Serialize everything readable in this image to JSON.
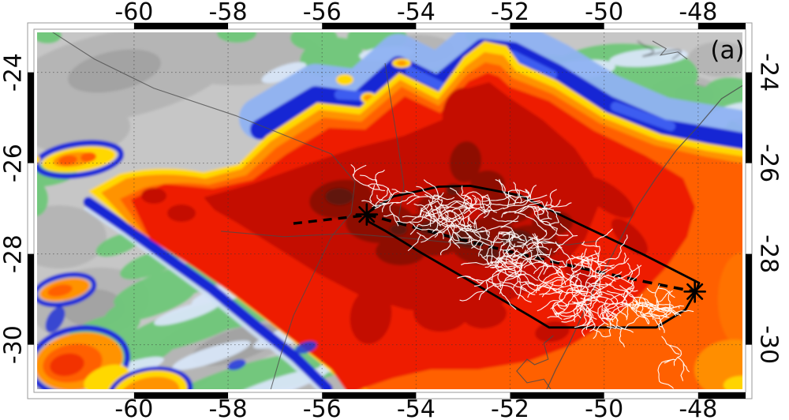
{
  "annotations": {
    "panel_label": "(a)"
  },
  "chart_data": {
    "type": "map",
    "subtype": "satellite-ir-brightness-temperature-with-lightning-overlay",
    "projection": {
      "lon_range": [
        -62.13,
        -46.99
      ],
      "lat_range": [
        -23.05,
        -31.05
      ]
    },
    "x_ticks": {
      "values": [
        -60,
        -58,
        -56,
        -54,
        -52,
        -50,
        -48
      ],
      "labels": [
        "-60",
        "-58",
        "-56",
        "-54",
        "-52",
        "-50",
        "-48"
      ],
      "sides": [
        "top",
        "bottom"
      ]
    },
    "y_ticks": {
      "values": [
        -24,
        -26,
        -28,
        -30
      ],
      "labels": [
        "-24",
        "-26",
        "-28",
        "-30"
      ],
      "sides": [
        "left",
        "right"
      ]
    },
    "graticule": {
      "step_deg": 2,
      "style": "dotted"
    },
    "frame": {
      "style": "alternating black-white degree bars",
      "bar_segments_lon": [
        [
          -60,
          -58
        ],
        [
          -56,
          -54
        ],
        [
          -52,
          -50
        ],
        [
          -48,
          -46.99
        ]
      ],
      "bar_segments_lat": [
        [
          -24,
          -26
        ],
        [
          -28,
          -30
        ]
      ]
    },
    "track": {
      "style": "dashed",
      "marker": "asterisk",
      "start": {
        "lon": -55.05,
        "lat": -27.13
      },
      "end": {
        "lon": -48.07,
        "lat": -28.83
      },
      "lead_segment": [
        [
          -56.61,
          -27.33
        ],
        [
          -55.15,
          -27.16
        ]
      ]
    },
    "lightning_polygon": [
      [
        -55.06,
        -27.11
      ],
      [
        -54.47,
        -26.73
      ],
      [
        -53.52,
        -26.52
      ],
      [
        -52.85,
        -26.5
      ],
      [
        -51.79,
        -26.71
      ],
      [
        -50.53,
        -27.34
      ],
      [
        -49.19,
        -28.0
      ],
      [
        -47.98,
        -28.64
      ],
      [
        -48.05,
        -28.84
      ],
      [
        -48.27,
        -29.23
      ],
      [
        -48.89,
        -29.62
      ],
      [
        -51.17,
        -29.62
      ],
      [
        -51.59,
        -29.36
      ],
      [
        -52.8,
        -28.63
      ],
      [
        -53.9,
        -27.97
      ],
      [
        -54.64,
        -27.5
      ],
      [
        -55.01,
        -27.29
      ]
    ],
    "lightning_clusters": [
      {
        "name": "northwest-cluster",
        "lon": -53.0,
        "lat": -27.15,
        "lon_extent": 1.8,
        "lat_extent": 0.55,
        "flashes": 26,
        "tilt": 0.1
      },
      {
        "name": "southeast-cluster",
        "lon": -50.3,
        "lat": -28.95,
        "lon_extent": 1.95,
        "lat_extent": 0.7,
        "flashes": 30,
        "tilt": 0.25
      },
      {
        "name": "mid-track-cluster",
        "lon": -51.9,
        "lat": -28.25,
        "lon_extent": 0.6,
        "lat_extent": 0.38,
        "flashes": 7,
        "tilt": 0.2
      }
    ],
    "colors": {
      "annotation": "#000000",
      "lightning": "#ffffff",
      "ir_shading_warm_to_cold": [
        "#c6c6c6",
        "#6fc87a",
        "#d9e6f8",
        "#8fb2f2",
        "#3d5df0",
        "#1626d4",
        "#ffd800",
        "#ff9300",
        "#ff6000",
        "#ee1f00",
        "#c40b00",
        "#8e1104",
        "#5c130a"
      ]
    },
    "map_features": {
      "borders_rivers": [
        [
          [
            -62.01,
            -22.93
          ],
          [
            -60.84,
            -23.71
          ],
          [
            -59.58,
            -24.35
          ],
          [
            -57.82,
            -24.96
          ],
          [
            -55.8,
            -25.8
          ],
          [
            -55.3,
            -26.41
          ],
          [
            -55.38,
            -27.1
          ],
          [
            -55.8,
            -27.62
          ],
          [
            -56.17,
            -28.41
          ],
          [
            -56.61,
            -29.36
          ],
          [
            -56.88,
            -30.23
          ],
          [
            -57.11,
            -31.05
          ]
        ],
        [
          [
            -54.66,
            -23.8
          ],
          [
            -54.53,
            -24.67
          ],
          [
            -54.38,
            -25.62
          ],
          [
            -54.26,
            -26.49
          ],
          [
            -54.38,
            -27.27
          ]
        ],
        [
          [
            -58.15,
            -27.5
          ],
          [
            -56.81,
            -27.62
          ],
          [
            -55.47,
            -27.55
          ],
          [
            -54.13,
            -27.66
          ],
          [
            -52.78,
            -27.8
          ],
          [
            -51.78,
            -27.68
          ],
          [
            -50.77,
            -27.8
          ],
          [
            -50.1,
            -27.71
          ]
        ],
        [
          [
            -48.97,
            -23.31
          ],
          [
            -48.68,
            -23.48
          ],
          [
            -48.8,
            -23.62
          ],
          [
            -48.43,
            -23.55
          ],
          [
            -48.23,
            -23.71
          ]
        ]
      ],
      "coastline": [
        [
          -46.96,
          -24.23
        ],
        [
          -47.5,
          -24.58
        ],
        [
          -48.0,
          -25.19
        ],
        [
          -48.46,
          -25.71
        ],
        [
          -48.89,
          -26.32
        ],
        [
          -49.3,
          -26.96
        ],
        [
          -49.63,
          -27.62
        ],
        [
          -49.93,
          -28.23
        ],
        [
          -50.24,
          -28.84
        ],
        [
          -50.47,
          -29.36
        ],
        [
          -50.74,
          -29.97
        ],
        [
          -51.03,
          -30.55
        ],
        [
          -51.25,
          -31.05
        ]
      ],
      "lagoon": [
        [
          -51.08,
          -29.8
        ],
        [
          -51.28,
          -29.97
        ],
        [
          -51.19,
          -30.32
        ],
        [
          -51.48,
          -30.44
        ],
        [
          -51.64,
          -30.32
        ],
        [
          -51.86,
          -30.58
        ],
        [
          -51.64,
          -30.84
        ],
        [
          -51.28,
          -30.76
        ],
        [
          -51.11,
          -31.02
        ]
      ]
    }
  }
}
